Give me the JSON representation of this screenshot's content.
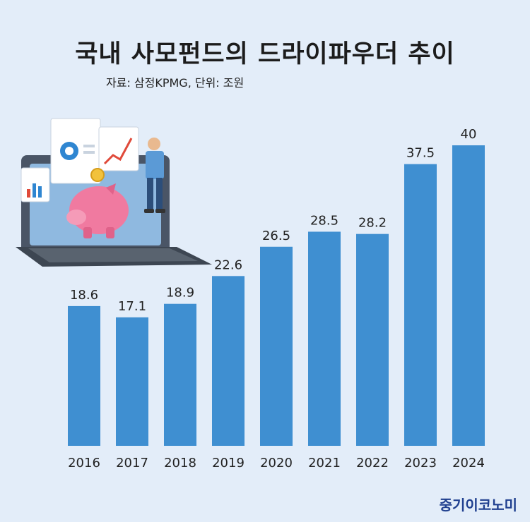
{
  "title": "국내 사모펀드의 드라이파우더 추이",
  "source": "자료: 삼정KPMG, 단위: 조원",
  "brand": "중기이코노미",
  "colors": {
    "background": "#e3edf9",
    "bar": "#3f8fd1"
  },
  "chart_data": {
    "type": "bar",
    "categories": [
      "2016",
      "2017",
      "2018",
      "2019",
      "2020",
      "2021",
      "2022",
      "2023",
      "2024"
    ],
    "values": [
      18.6,
      17.1,
      18.9,
      22.6,
      26.5,
      28.5,
      28.2,
      37.5,
      40
    ],
    "data_labels": [
      "18.6",
      "17.1",
      "18.9",
      "22.6",
      "26.5",
      "28.5",
      "28.2",
      "37.5",
      "40"
    ],
    "unit": "조원",
    "grid": false,
    "legend": "none"
  }
}
